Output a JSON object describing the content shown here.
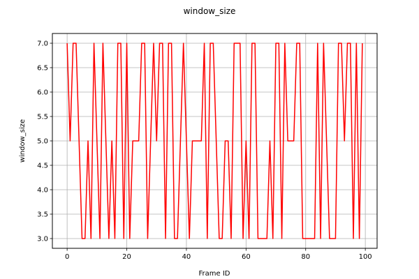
{
  "chart_data": {
    "type": "line",
    "title": "window_size",
    "xlabel": "Frame ID",
    "ylabel": "window_size",
    "xlim": [
      -4.95,
      103.95
    ],
    "ylim": [
      2.8,
      7.2
    ],
    "xticks": [
      0,
      20,
      40,
      60,
      80,
      100
    ],
    "yticks": [
      3.0,
      3.5,
      4.0,
      4.5,
      5.0,
      5.5,
      6.0,
      6.5,
      7.0
    ],
    "grid": true,
    "series": [
      {
        "color": "#ff0000",
        "x": [
          0,
          1,
          2,
          3,
          4,
          5,
          6,
          7,
          8,
          9,
          10,
          11,
          12,
          13,
          14,
          15,
          16,
          17,
          18,
          19,
          20,
          21,
          22,
          23,
          24,
          25,
          26,
          27,
          28,
          29,
          30,
          31,
          32,
          33,
          34,
          35,
          36,
          37,
          38,
          39,
          40,
          41,
          42,
          43,
          44,
          45,
          46,
          47,
          48,
          49,
          50,
          51,
          52,
          53,
          54,
          55,
          56,
          57,
          58,
          59,
          60,
          61,
          62,
          63,
          64,
          65,
          66,
          67,
          68,
          69,
          70,
          71,
          72,
          73,
          74,
          75,
          76,
          77,
          78,
          79,
          80,
          81,
          82,
          83,
          84,
          85,
          86,
          87,
          88,
          89,
          90,
          91,
          92,
          93,
          94,
          95,
          96,
          97,
          98,
          99
        ],
        "values": [
          7,
          5,
          7,
          7,
          5,
          3,
          3,
          5,
          3,
          7,
          5,
          3,
          7,
          5,
          3,
          5,
          3,
          7,
          7,
          3,
          7,
          3,
          5,
          5,
          5,
          7,
          7,
          3,
          5,
          7,
          5,
          7,
          7,
          3,
          7,
          7,
          3,
          3,
          5,
          7,
          5,
          3,
          5,
          5,
          5,
          5,
          7,
          3,
          7,
          7,
          5,
          3,
          3,
          5,
          5,
          3,
          7,
          7,
          7,
          3,
          5,
          3,
          7,
          7,
          3,
          3,
          3,
          3,
          5,
          3,
          7,
          7,
          3,
          7,
          5,
          5,
          5,
          7,
          7,
          3,
          3,
          3,
          3,
          3,
          7,
          3,
          7,
          5,
          3,
          3,
          3,
          7,
          7,
          5,
          7,
          7,
          3,
          7,
          3,
          7
        ]
      }
    ]
  }
}
